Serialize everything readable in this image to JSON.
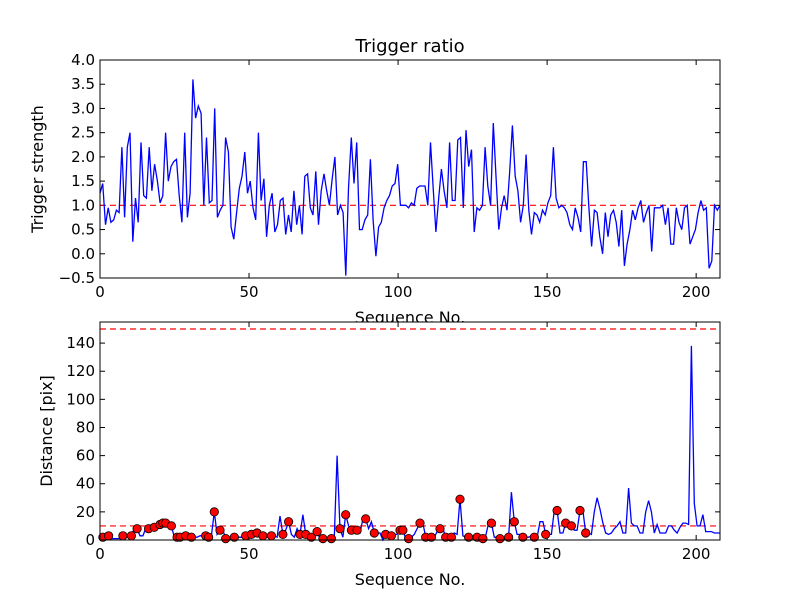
{
  "chart_data": [
    {
      "type": "line",
      "title": "Trigger ratio",
      "xlabel": "Sequence No.",
      "ylabel": "Trigger strength",
      "xlim": [
        0,
        208
      ],
      "ylim": [
        -0.5,
        4.0
      ],
      "x_ticks": [
        0,
        50,
        100,
        150,
        200
      ],
      "x_tick_labels": [
        "0",
        "50",
        "100",
        "150",
        "200"
      ],
      "y_ticks": [
        -0.5,
        0.0,
        0.5,
        1.0,
        1.5,
        2.0,
        2.5,
        3.0,
        3.5,
        4.0
      ],
      "y_tick_labels": [
        "−0.5",
        "0.0",
        "0.5",
        "1.0",
        "1.5",
        "2.0",
        "2.5",
        "3.0",
        "3.5",
        "4.0"
      ],
      "threshold": 1.0,
      "colors": {
        "series": "#0000ff",
        "threshold": "#ff0000"
      },
      "series": [
        {
          "name": "trigger_strength",
          "values": [
            1.25,
            1.45,
            0.6,
            0.95,
            0.65,
            0.7,
            0.9,
            0.85,
            2.2,
            0.75,
            2.2,
            2.5,
            0.25,
            1.15,
            0.65,
            2.3,
            1.2,
            1.15,
            2.2,
            1.3,
            1.85,
            1.5,
            1.05,
            1.2,
            2.5,
            1.5,
            1.8,
            1.9,
            1.95,
            1.2,
            0.65,
            2.5,
            0.75,
            1.25,
            3.6,
            2.8,
            3.05,
            2.9,
            1.0,
            2.4,
            1.05,
            1.1,
            3.0,
            0.75,
            0.9,
            1.0,
            2.4,
            2.1,
            0.55,
            0.3,
            0.85,
            1.35,
            1.6,
            2.1,
            1.25,
            1.5,
            0.95,
            0.7,
            2.5,
            1.1,
            1.55,
            0.35,
            1.0,
            1.25,
            0.45,
            0.6,
            1.1,
            1.15,
            0.4,
            0.8,
            0.45,
            1.3,
            0.6,
            1.0,
            0.4,
            1.6,
            1.65,
            0.95,
            0.8,
            1.7,
            0.6,
            1.3,
            1.65,
            1.3,
            1.0,
            1.55,
            2.0,
            0.8,
            1.0,
            0.85,
            -0.45,
            1.35,
            2.4,
            1.45,
            2.3,
            0.5,
            0.5,
            0.7,
            0.8,
            1.95,
            0.7,
            -0.05,
            0.55,
            0.65,
            0.95,
            1.1,
            1.2,
            1.4,
            1.45,
            1.85,
            1.0,
            1.0,
            1.0,
            0.95,
            1.05,
            1.0,
            1.35,
            1.4,
            1.4,
            1.4,
            1.0,
            2.3,
            1.35,
            0.45,
            1.15,
            1.75,
            1.3,
            0.95,
            2.3,
            1.1,
            1.1,
            2.35,
            2.4,
            0.95,
            2.55,
            1.8,
            2.15,
            0.45,
            0.95,
            0.9,
            1.0,
            2.2,
            1.4,
            1.0,
            2.7,
            1.6,
            0.5,
            0.95,
            1.2,
            0.9,
            1.7,
            2.65,
            1.6,
            1.3,
            0.65,
            1.0,
            2.05,
            0.9,
            0.4,
            0.85,
            0.8,
            0.65,
            0.9,
            0.8,
            1.05,
            1.2,
            2.2,
            1.15,
            0.95,
            1.0,
            0.95,
            0.85,
            0.6,
            0.5,
            0.95,
            0.75,
            0.45,
            1.9,
            1.9,
            0.95,
            0.15,
            0.9,
            0.85,
            0.35,
            0.0,
            0.85,
            0.35,
            0.8,
            0.9,
            0.65,
            0.15,
            0.9,
            -0.25,
            0.2,
            0.5,
            0.9,
            0.7,
            0.95,
            1.1,
            0.65,
            0.85,
            1.0,
            0.05,
            0.95,
            0.95,
            0.95,
            1.0,
            0.6,
            0.95,
            0.2,
            0.2,
            0.95,
            0.65,
            0.5,
            0.95,
            1.0,
            0.2,
            0.35,
            0.5,
            0.85,
            1.1,
            0.9,
            0.95,
            -0.3,
            -0.15,
            1.0,
            0.9,
            1.0
          ]
        }
      ]
    },
    {
      "type": "line",
      "title": "",
      "xlabel": "Sequence No.",
      "ylabel": "Distance [pix]",
      "xlim": [
        0,
        208
      ],
      "ylim": [
        0,
        155
      ],
      "x_ticks": [
        0,
        50,
        100,
        150,
        200
      ],
      "x_tick_labels": [
        "0",
        "50",
        "100",
        "150",
        "200"
      ],
      "y_ticks": [
        0,
        20,
        40,
        60,
        80,
        100,
        120,
        140
      ],
      "y_tick_labels": [
        "0",
        "20",
        "40",
        "60",
        "80",
        "100",
        "120",
        "140"
      ],
      "thresholds": [
        10,
        150
      ],
      "colors": {
        "series": "#0000ff",
        "threshold": "#ff0000",
        "marker": "#ff0000"
      },
      "series": [
        {
          "name": "distance",
          "values": [
            2,
            2,
            3,
            3,
            1,
            1,
            1,
            1,
            3,
            3,
            2,
            3,
            8,
            8,
            3,
            3,
            8,
            8,
            9,
            9,
            9,
            11,
            12,
            12,
            10,
            10,
            2,
            2,
            2,
            3,
            3,
            3,
            2,
            2,
            2,
            3,
            3,
            3,
            2,
            3,
            20,
            4,
            7,
            7,
            1,
            1,
            1,
            2,
            2,
            2,
            2,
            3,
            3,
            4,
            4,
            5,
            5,
            3,
            3,
            3,
            3,
            3,
            2,
            17,
            4,
            7,
            13,
            4,
            2,
            8,
            4,
            18,
            4,
            4,
            2,
            6,
            6,
            1,
            1,
            1,
            1,
            1,
            2,
            60,
            8,
            2,
            18,
            10,
            7,
            7,
            7,
            5,
            15,
            15,
            8,
            13,
            5,
            5,
            5,
            0,
            4,
            4,
            3,
            4,
            4,
            7,
            7,
            1,
            1,
            2,
            4,
            8,
            12,
            12,
            2,
            2,
            2,
            2,
            6,
            8,
            8,
            2,
            2,
            2,
            5,
            4,
            29,
            3,
            2,
            2,
            2,
            1,
            2,
            2,
            1,
            3,
            12,
            12,
            2,
            2,
            1,
            1,
            2,
            2,
            34,
            13,
            4,
            4,
            2,
            2,
            2,
            3,
            2,
            2,
            13,
            13,
            4,
            4,
            4,
            21,
            21,
            5,
            5,
            12,
            12,
            10,
            7,
            7,
            21,
            21,
            5,
            5,
            4,
            20,
            30,
            22,
            12,
            5,
            4,
            5,
            8,
            10,
            13,
            5,
            5,
            37,
            12,
            10,
            10,
            5,
            5,
            20,
            28,
            20,
            5,
            11,
            5,
            5,
            5,
            10,
            10,
            7,
            5,
            9,
            12,
            12,
            11,
            138,
            26,
            10,
            10,
            18,
            6,
            6,
            6,
            5,
            5,
            5
          ],
          "marker_indices": [
            1,
            3,
            8,
            11,
            13,
            17,
            19,
            21,
            22,
            23,
            25,
            27,
            28,
            30,
            32,
            37,
            38,
            40,
            42,
            44,
            47,
            51,
            53,
            55,
            57,
            60,
            64,
            66,
            70,
            72,
            74,
            76,
            78,
            81,
            84,
            86,
            88,
            90,
            93,
            96,
            100,
            102,
            105,
            106,
            108,
            112,
            114,
            116,
            119,
            121,
            123,
            126,
            129,
            132,
            134,
            137,
            140,
            143,
            145,
            148,
            152,
            156,
            160,
            163,
            165,
            168,
            170
          ]
        }
      ]
    }
  ]
}
